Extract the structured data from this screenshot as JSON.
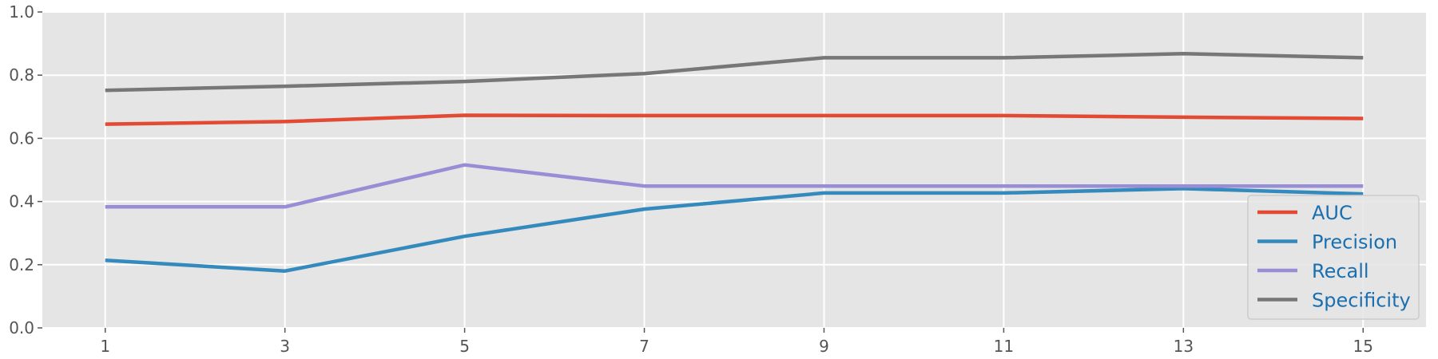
{
  "chart_data": {
    "type": "line",
    "x": [
      1,
      3,
      5,
      7,
      9,
      11,
      13,
      15
    ],
    "xticks": [
      "1",
      "3",
      "5",
      "7",
      "9",
      "11",
      "13",
      "15"
    ],
    "xlim": [
      0.3,
      15.7
    ],
    "ylim": [
      0,
      1.0
    ],
    "yticks": [
      "0.0",
      "0.2",
      "0.4",
      "0.6",
      "0.8",
      "1.0"
    ],
    "grid": true,
    "legend_position": "lower-right",
    "series": [
      {
        "name": "AUC",
        "color": "#E24A33",
        "values": [
          0.645,
          0.653,
          0.673,
          0.672,
          0.672,
          0.672,
          0.667,
          0.663
        ]
      },
      {
        "name": "Precision",
        "color": "#348ABD",
        "values": [
          0.214,
          0.18,
          0.29,
          0.376,
          0.427,
          0.427,
          0.441,
          0.424
        ]
      },
      {
        "name": "Recall",
        "color": "#988ED5",
        "values": [
          0.383,
          0.383,
          0.516,
          0.449,
          0.449,
          0.449,
          0.449,
          0.449
        ]
      },
      {
        "name": "Specificity",
        "color": "#777777",
        "values": [
          0.752,
          0.765,
          0.78,
          0.805,
          0.855,
          0.855,
          0.868,
          0.855
        ]
      }
    ]
  }
}
